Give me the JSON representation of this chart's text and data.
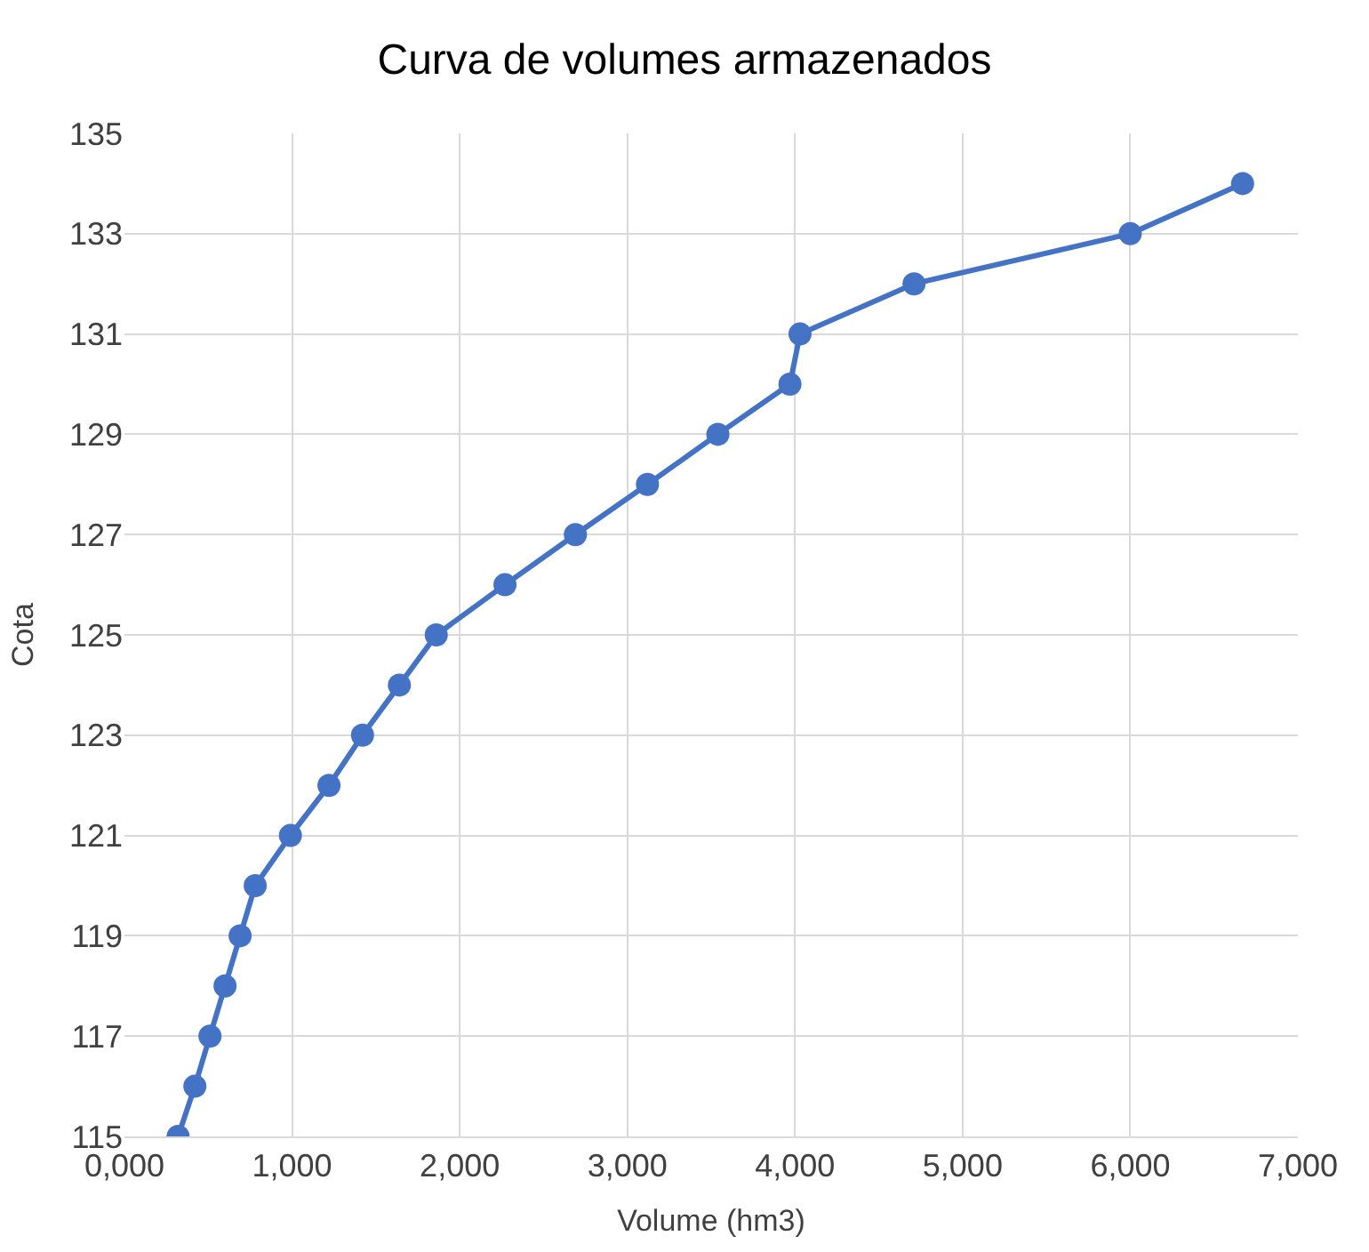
{
  "chart_data": {
    "type": "line",
    "title": "Curva de volumes armazenados",
    "xlabel": "Volume (hm3)",
    "ylabel": "Cota",
    "series": [
      {
        "color": "#4472c4",
        "x": [
          320,
          420,
          510,
          600,
          690,
          780,
          990,
          1220,
          1420,
          1640,
          1860,
          2270,
          2690,
          3120,
          3540,
          3970,
          4030,
          4710,
          6000,
          6670
        ],
        "values": [
          115,
          116,
          117,
          118,
          119,
          120,
          121,
          122,
          123,
          124,
          125,
          126,
          127,
          128,
          129,
          130,
          131,
          132,
          133,
          134
        ]
      }
    ],
    "xlim": [
      0,
      7000
    ],
    "xticks": [
      {
        "value": 0,
        "label": "0,000"
      },
      {
        "value": 1000,
        "label": "1,000"
      },
      {
        "value": 2000,
        "label": "2,000"
      },
      {
        "value": 3000,
        "label": "3,000"
      },
      {
        "value": 4000,
        "label": "4,000"
      },
      {
        "value": 5000,
        "label": "5,000"
      },
      {
        "value": 6000,
        "label": "6,000"
      },
      {
        "value": 7000,
        "label": "7,000"
      }
    ],
    "ylim": [
      115,
      135
    ],
    "yticks": [
      115,
      117,
      119,
      121,
      123,
      125,
      127,
      129,
      131,
      133,
      135
    ],
    "grid": true,
    "marker": "circle",
    "line_style": "solid"
  }
}
